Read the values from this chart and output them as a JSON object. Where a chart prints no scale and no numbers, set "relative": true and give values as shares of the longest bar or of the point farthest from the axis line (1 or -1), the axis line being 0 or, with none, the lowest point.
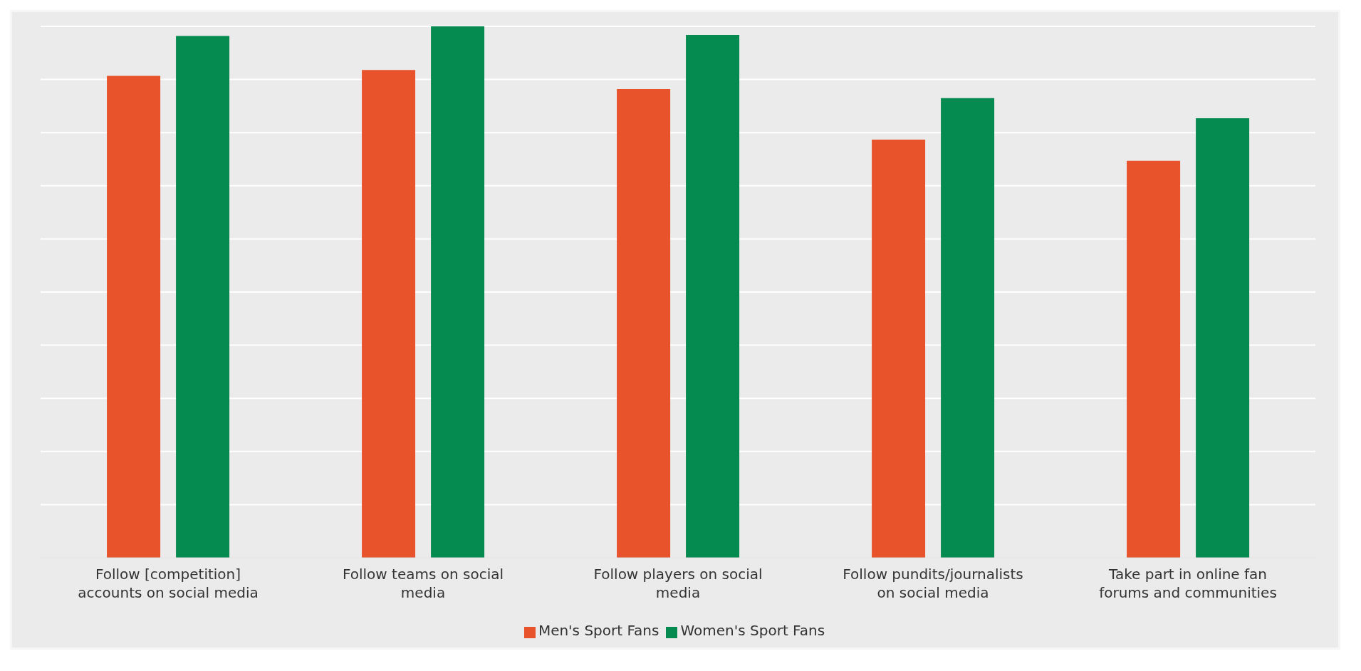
{
  "chart_data": {
    "type": "bar",
    "relative": true,
    "categories": [
      "Follow [competition] accounts on social media",
      "Follow teams on social media",
      "Follow players on social media",
      "Follow pundits/journalists on social media",
      "Take part in online fan forums and communities"
    ],
    "series": [
      {
        "name": "Men's Sport Fans",
        "color": "#e8532b",
        "values": [
          0.907,
          0.918,
          0.882,
          0.787,
          0.747
        ]
      },
      {
        "name": "Women's Sport Fans",
        "color": "#058a4f",
        "values": [
          0.982,
          1,
          0.984,
          0.865,
          0.827
        ]
      }
    ],
    "grid": "y",
    "legend": "bottom"
  }
}
